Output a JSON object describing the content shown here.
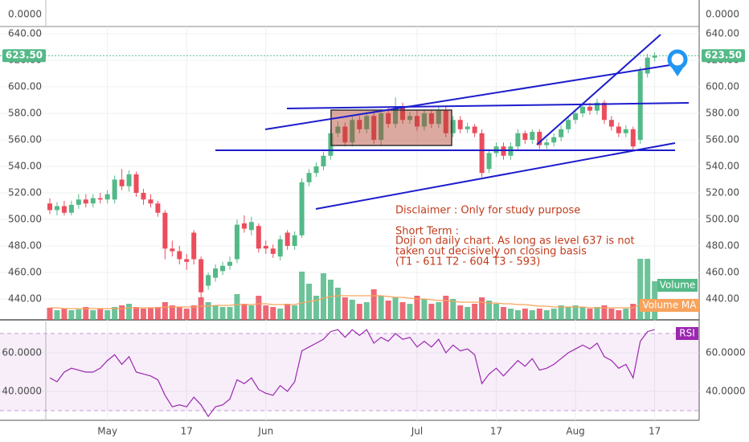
{
  "chart_data": {
    "type": "candlestick",
    "top_pane_label": "0.0000",
    "categories": [
      null,
      null,
      null,
      null,
      null,
      null,
      null,
      null,
      "May",
      null,
      null,
      null,
      null,
      null,
      null,
      null,
      null,
      null,
      null,
      "17",
      null,
      null,
      null,
      null,
      null,
      null,
      null,
      null,
      null,
      null,
      "Jun",
      null,
      null,
      null,
      null,
      null,
      null,
      null,
      null,
      null,
      null,
      null,
      null,
      null,
      null,
      null,
      null,
      null,
      null,
      null,
      null,
      "Jul",
      null,
      null,
      null,
      null,
      null,
      null,
      null,
      null,
      null,
      null,
      "17",
      null,
      null,
      null,
      null,
      null,
      null,
      null,
      null,
      null,
      null,
      "Aug",
      null,
      null,
      null,
      null,
      null,
      null,
      null,
      null,
      null,
      null,
      "17"
    ],
    "open": [
      512,
      507,
      510,
      505,
      511,
      515,
      512,
      516,
      515,
      515,
      530,
      525,
      534,
      520,
      515,
      512,
      505,
      478,
      476,
      470,
      490,
      470,
      450,
      456,
      461,
      465,
      470,
      497,
      492,
      495,
      480,
      478,
      472,
      490,
      480,
      488,
      528,
      535,
      540,
      548,
      565,
      570,
      558,
      575,
      568,
      578,
      560,
      580,
      572,
      585,
      575,
      578,
      570,
      580,
      572,
      582,
      565,
      575,
      568,
      570,
      565,
      538,
      550,
      555,
      548,
      555,
      565,
      560,
      566,
      556,
      558,
      562,
      568,
      575,
      580,
      585,
      582,
      588,
      575,
      570,
      565,
      568,
      560,
      610,
      622
    ],
    "high": [
      516,
      513,
      514,
      514,
      519,
      519,
      519,
      520,
      522,
      533,
      538,
      537,
      536,
      523,
      519,
      514,
      507,
      484,
      480,
      474,
      492,
      472,
      460,
      466,
      468,
      472,
      500,
      503,
      502,
      497,
      484,
      481,
      488,
      492,
      491,
      531,
      538,
      543,
      551,
      568,
      574,
      573,
      578,
      578,
      581,
      582,
      583,
      584,
      592,
      588,
      581,
      582,
      583,
      583,
      585,
      585,
      578,
      578,
      573,
      572,
      568,
      553,
      558,
      558,
      558,
      568,
      567,
      568,
      568,
      561,
      565,
      571,
      578,
      583,
      588,
      588,
      591,
      590,
      578,
      573,
      571,
      570,
      615,
      625,
      626
    ],
    "low": [
      504,
      503,
      503,
      503,
      508,
      509,
      509,
      512,
      512,
      512,
      522,
      521,
      517,
      511,
      509,
      502,
      470,
      472,
      466,
      462,
      466,
      440,
      447,
      453,
      458,
      462,
      467,
      490,
      488,
      475,
      474,
      471,
      469,
      477,
      477,
      486,
      525,
      532,
      537,
      545,
      562,
      555,
      555,
      565,
      565,
      557,
      556,
      569,
      569,
      572,
      572,
      567,
      567,
      569,
      569,
      562,
      562,
      565,
      565,
      562,
      532,
      535,
      547,
      545,
      545,
      552,
      557,
      557,
      553,
      553,
      555,
      559,
      565,
      572,
      577,
      579,
      579,
      572,
      567,
      562,
      562,
      552,
      557,
      607,
      619
    ],
    "close": [
      507,
      510,
      505,
      511,
      515,
      512,
      516,
      515,
      519,
      530,
      525,
      534,
      520,
      515,
      512,
      505,
      478,
      476,
      470,
      468,
      470,
      445,
      458,
      463,
      465,
      468,
      496,
      493,
      498,
      478,
      478,
      474,
      485,
      480,
      488,
      528,
      535,
      540,
      548,
      565,
      570,
      558,
      575,
      568,
      578,
      560,
      580,
      572,
      585,
      575,
      578,
      570,
      580,
      572,
      582,
      565,
      575,
      568,
      570,
      565,
      535,
      550,
      555,
      548,
      555,
      565,
      560,
      566,
      556,
      558,
      562,
      568,
      575,
      580,
      585,
      582,
      588,
      575,
      570,
      565,
      568,
      555,
      612,
      622,
      623.5
    ],
    "up_color": "#53b987",
    "down_color": "#eb4d5c",
    "ylim": [
      424.24,
      645.45
    ],
    "yticks": [
      {
        "value": 440,
        "label": "440.00"
      },
      {
        "value": 460,
        "label": "460.00"
      },
      {
        "value": 480,
        "label": "480.00"
      },
      {
        "value": 500,
        "label": "500.00"
      },
      {
        "value": 520,
        "label": "520.00"
      },
      {
        "value": 540,
        "label": "540.00"
      },
      {
        "value": 560,
        "label": "560.00"
      },
      {
        "value": 580,
        "label": "580.00"
      },
      {
        "value": 600,
        "label": "600.00"
      },
      {
        "value": 620,
        "label": "620.00"
      },
      {
        "value": 640,
        "label": "640.00"
      }
    ],
    "last_price": {
      "value": 623.5,
      "label": "623.50"
    },
    "grid": true,
    "volume": {
      "name": "Volume",
      "color": "#53b987",
      "ylim": [
        0,
        100
      ],
      "values": [
        15,
        12,
        14,
        12,
        13,
        16,
        12,
        14,
        12,
        16,
        18,
        20,
        16,
        14,
        15,
        16,
        22,
        18,
        16,
        14,
        18,
        28,
        22,
        18,
        16,
        16,
        32,
        20,
        18,
        30,
        18,
        16,
        14,
        20,
        18,
        60,
        45,
        30,
        58,
        50,
        40,
        28,
        25,
        20,
        22,
        38,
        30,
        24,
        28,
        22,
        20,
        30,
        26,
        20,
        22,
        30,
        26,
        18,
        16,
        20,
        28,
        24,
        20,
        16,
        14,
        12,
        14,
        12,
        14,
        12,
        14,
        18,
        16,
        18,
        16,
        14,
        16,
        18,
        14,
        12,
        14,
        20,
        76,
        76,
        48
      ]
    },
    "volume_ma": {
      "name": "Volume MA",
      "color": "#f7a35c",
      "values": [
        15,
        15,
        14,
        14,
        14,
        14,
        14,
        14,
        14,
        14,
        14,
        15,
        15,
        15,
        15,
        15,
        16,
        16,
        16,
        16,
        16,
        17,
        17,
        18,
        18,
        18,
        19,
        19,
        19,
        20,
        20,
        19,
        19,
        19,
        19,
        21,
        23,
        24,
        27,
        29,
        30,
        30,
        30,
        30,
        30,
        30,
        30,
        29,
        28,
        28,
        27,
        26,
        26,
        25,
        24,
        24,
        23,
        22,
        22,
        22,
        22,
        21,
        21,
        20,
        20,
        19,
        19,
        18,
        17,
        17,
        16,
        16,
        16,
        16,
        16,
        15,
        15,
        15,
        15,
        15,
        15,
        15,
        19,
        22,
        24
      ]
    },
    "rsi": {
      "name": "RSI",
      "color": "#9c27b0",
      "ylim": [
        25,
        76.25
      ],
      "bands": [
        30,
        70
      ],
      "yticks": [
        {
          "value": 40,
          "label": "40.0000"
        },
        {
          "value": 60,
          "label": "60.0000"
        }
      ],
      "values": [
        47,
        45,
        50,
        52,
        51,
        50,
        50,
        52,
        56,
        59,
        54,
        58,
        50,
        49,
        48,
        46,
        38,
        32,
        33,
        32,
        37,
        33,
        27,
        32,
        33,
        36,
        46,
        44,
        47,
        41,
        39,
        38,
        43,
        40,
        45,
        61,
        63,
        65,
        67,
        71,
        72,
        68,
        72,
        69,
        72,
        65,
        68,
        66,
        70,
        67,
        68,
        63,
        66,
        63,
        67,
        60,
        64,
        61,
        62,
        59,
        44,
        49,
        52,
        48,
        52,
        56,
        53,
        57,
        51,
        52,
        54,
        57,
        60,
        62,
        64,
        62,
        65,
        58,
        56,
        52,
        54,
        47,
        66,
        71,
        72
      ]
    },
    "annotation": [
      "Disclaimer : Only for study purpose",
      "Short Term :",
      "Doji on daily chart. As long as level 637 is not",
      "taken out decisively on closing basis",
      "(T1 - 611 T2 - 604 T3 - 593)"
    ]
  }
}
